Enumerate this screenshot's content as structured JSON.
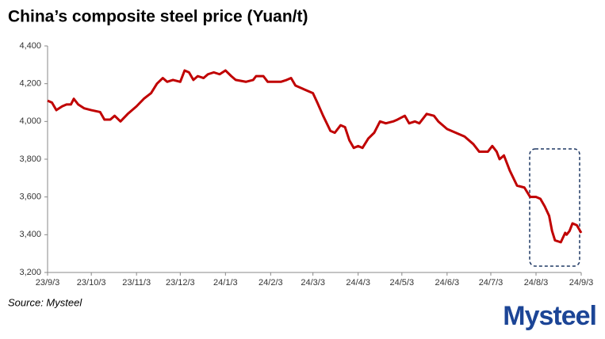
{
  "chart_data": {
    "type": "line",
    "title": "China’s composite steel price (Yuan/t)",
    "x": [
      "23/9/3",
      "23/9/6",
      "23/9/9",
      "23/9/13",
      "23/9/16",
      "23/9/19",
      "23/9/21",
      "23/9/24",
      "23/9/28",
      "23/10/3",
      "23/10/9",
      "23/10/12",
      "23/10/16",
      "23/10/19",
      "23/10/23",
      "23/10/28",
      "23/11/3",
      "23/11/8",
      "23/11/13",
      "23/11/17",
      "23/11/21",
      "23/11/24",
      "23/11/28",
      "23/12/3",
      "23/12/6",
      "23/12/9",
      "23/12/12",
      "23/12/15",
      "23/12/19",
      "23/12/22",
      "23/12/26",
      "23/12/30",
      "24/1/3",
      "24/1/7",
      "24/1/10",
      "24/1/17",
      "24/1/22",
      "24/1/24",
      "24/1/29",
      "24/2/1",
      "24/2/10",
      "24/2/14",
      "24/2/17",
      "24/2/20",
      "24/2/26",
      "24/3/3",
      "24/3/6",
      "24/3/10",
      "24/3/15",
      "24/3/18",
      "24/3/22",
      "24/3/25",
      "24/3/28",
      "24/3/31",
      "24/4/3",
      "24/4/6",
      "24/4/10",
      "24/4/14",
      "24/4/18",
      "24/4/22",
      "24/4/27",
      "24/4/30",
      "24/5/5",
      "24/5/8",
      "24/5/12",
      "24/5/15",
      "24/5/20",
      "24/5/25",
      "24/5/28",
      "24/6/3",
      "24/6/9",
      "24/6/15",
      "24/6/21",
      "24/6/25",
      "24/7/1",
      "24/7/4",
      "24/7/7",
      "24/7/9",
      "24/7/12",
      "24/7/16",
      "24/7/21",
      "24/7/26",
      "24/7/30",
      "24/8/3",
      "24/8/6",
      "24/8/9",
      "24/8/12",
      "24/8/14",
      "24/8/16",
      "24/8/20",
      "24/8/23",
      "24/8/24",
      "24/8/26",
      "24/8/28",
      "24/8/31",
      "24/9/3"
    ],
    "values": [
      4110,
      4100,
      4060,
      4080,
      4090,
      4090,
      4120,
      4090,
      4070,
      4060,
      4050,
      4010,
      4010,
      4030,
      4000,
      4040,
      4080,
      4120,
      4150,
      4200,
      4230,
      4210,
      4220,
      4210,
      4270,
      4260,
      4220,
      4240,
      4230,
      4250,
      4260,
      4250,
      4270,
      4240,
      4220,
      4210,
      4220,
      4240,
      4240,
      4210,
      4210,
      4220,
      4230,
      4190,
      4170,
      4150,
      4100,
      4030,
      3950,
      3940,
      3980,
      3970,
      3900,
      3860,
      3870,
      3860,
      3910,
      3940,
      4000,
      3990,
      4000,
      4010,
      4030,
      3990,
      4000,
      3990,
      4040,
      4030,
      4000,
      3960,
      3940,
      3920,
      3880,
      3840,
      3840,
      3870,
      3840,
      3800,
      3820,
      3740,
      3660,
      3650,
      3600,
      3600,
      3590,
      3550,
      3500,
      3420,
      3370,
      3360,
      3410,
      3400,
      3420,
      3460,
      3450,
      3410
    ],
    "color": "#c00000",
    "xlim": [
      "23/9/3",
      "24/9/3"
    ],
    "xticks": [
      "23/9/3",
      "23/10/3",
      "23/11/3",
      "23/12/3",
      "24/1/3",
      "24/2/3",
      "24/3/3",
      "24/4/3",
      "24/5/3",
      "24/6/3",
      "24/7/3",
      "24/8/3",
      "24/9/3"
    ],
    "ylim": [
      3200,
      4400
    ],
    "yticks": [
      {
        "value": 3200,
        "label": "3,200"
      },
      {
        "value": 3400,
        "label": "3,400"
      },
      {
        "value": 3600,
        "label": "3,600"
      },
      {
        "value": 3800,
        "label": "3,800"
      },
      {
        "value": 4000,
        "label": "4,000"
      },
      {
        "value": 4200,
        "label": "4,200"
      },
      {
        "value": 4400,
        "label": "4,400"
      }
    ]
  },
  "source": "Source: Mysteel",
  "logo": "Mysteel"
}
